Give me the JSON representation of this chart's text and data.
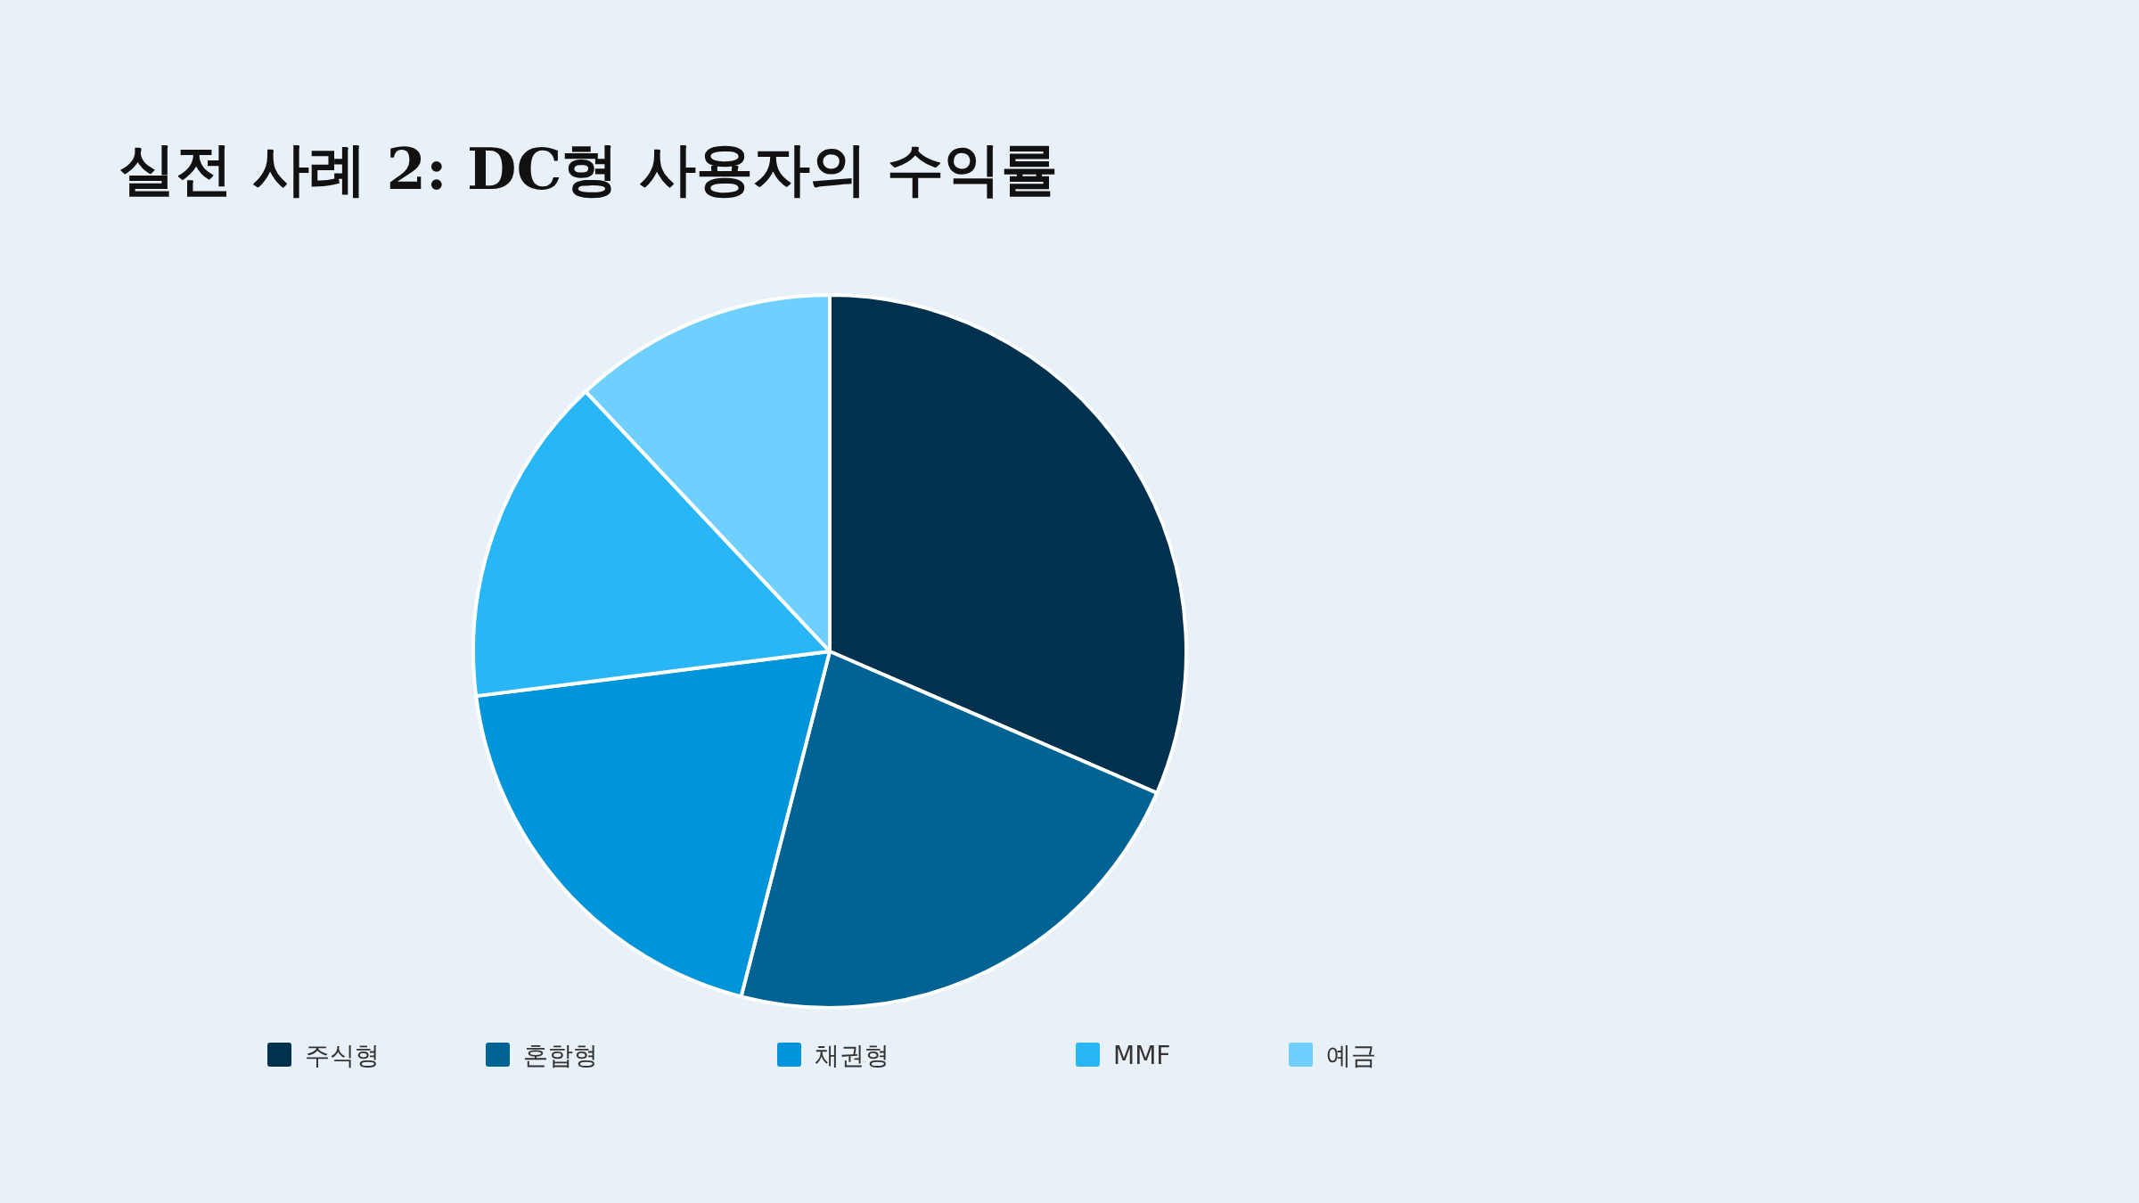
{
  "chart_data": {
    "type": "pie",
    "title": "실전 사례 2: DC형 사용자의 수익률",
    "categories": [
      "주식형",
      "혼합형",
      "채권형",
      "MMF",
      "예금"
    ],
    "values": [
      31.5,
      22.5,
      19,
      15,
      12
    ],
    "colors": [
      "#003250",
      "#006394",
      "#0094da",
      "#29b6f6",
      "#6fcffe"
    ],
    "legend": "bottom"
  }
}
